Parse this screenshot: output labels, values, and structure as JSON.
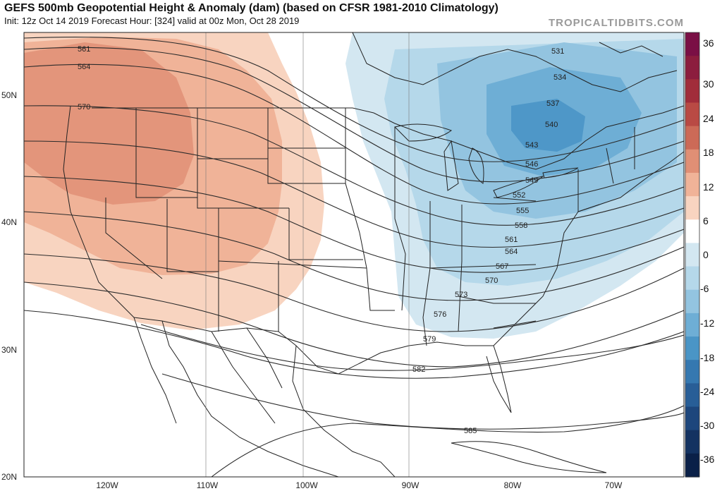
{
  "header": {
    "title": "GEFS 500mb Geopotential Height & Anomaly (dam) (based on CFSR 1981-2010 Climatology)",
    "subtitle": "Init: 12z Oct 14 2019   Forecast Hour: [324]   valid at 00z Mon, Oct 28 2019",
    "brand": "TROPICALTIDBITS.COM"
  },
  "map": {
    "lat_labels": [
      "50N",
      "40N",
      "30N",
      "20N"
    ],
    "lon_labels": [
      "120W",
      "110W",
      "100W",
      "90W",
      "80W",
      "70W"
    ],
    "contour_labels": [
      "531",
      "534",
      "537",
      "540",
      "543",
      "546",
      "549",
      "552",
      "555",
      "558",
      "561",
      "561",
      "564",
      "564",
      "567",
      "570",
      "570",
      "573",
      "576",
      "579",
      "582",
      "585"
    ]
  },
  "colorbar": {
    "labels": [
      "36",
      "30",
      "24",
      "18",
      "12",
      "6",
      "0",
      "-6",
      "-12",
      "-18",
      "-24",
      "-30",
      "-36"
    ],
    "colors": [
      "#7a0f45",
      "#8c1d3e",
      "#a12d3a",
      "#b94a44",
      "#cc6a57",
      "#e08f75",
      "#f0b398",
      "#f8d4c0",
      "#ffffff",
      "#d3e7f1",
      "#b5d8ea",
      "#93c4e0",
      "#6eaed5",
      "#4a95c6",
      "#3578b0",
      "#285e97",
      "#1d467c",
      "#133261",
      "#0a2048"
    ]
  }
}
